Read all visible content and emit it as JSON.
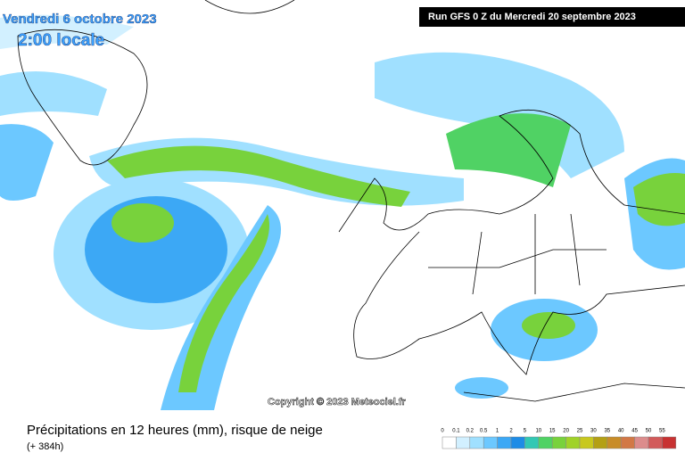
{
  "header": {
    "date": "Vendredi 6 octobre 2023",
    "time": "2:00 locale",
    "run": "Run GFS 0 Z du Mercredi 20 septembre 2023"
  },
  "copyright": "Copyright © 2023 Meteociel.fr",
  "footer": {
    "title": "Précipitations en 12 heures (mm), risque de neige",
    "lead": "(+ 384h)"
  },
  "legend": [
    {
      "label": 0,
      "color": "#ffffff"
    },
    {
      "label": 0.1,
      "color": "#d2f0ff"
    },
    {
      "label": 0.2,
      "color": "#a0e0ff"
    },
    {
      "label": 0.5,
      "color": "#6cc8ff"
    },
    {
      "label": 1,
      "color": "#3ca8f5"
    },
    {
      "label": 2,
      "color": "#1e8ce6"
    },
    {
      "label": 5,
      "color": "#32c8b4"
    },
    {
      "label": 10,
      "color": "#50d264"
    },
    {
      "label": 15,
      "color": "#78d23c"
    },
    {
      "label": 20,
      "color": "#a0d228"
    },
    {
      "label": 25,
      "color": "#c8c81e"
    },
    {
      "label": 30,
      "color": "#b4a014"
    },
    {
      "label": 35,
      "color": "#c88c28"
    },
    {
      "label": 40,
      "color": "#d27846"
    },
    {
      "label": 45,
      "color": "#dc8c8c"
    },
    {
      "label": 50,
      "color": "#d25a5a"
    },
    {
      "label": 55,
      "color": "#c83232"
    }
  ]
}
